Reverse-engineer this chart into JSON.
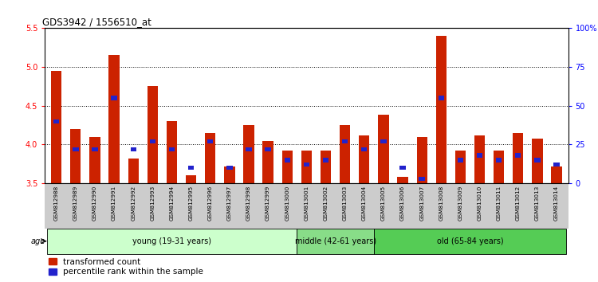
{
  "title": "GDS3942 / 1556510_at",
  "samples": [
    "GSM812988",
    "GSM812989",
    "GSM812990",
    "GSM812991",
    "GSM812992",
    "GSM812993",
    "GSM812994",
    "GSM812995",
    "GSM812996",
    "GSM812997",
    "GSM812998",
    "GSM812999",
    "GSM813000",
    "GSM813001",
    "GSM813002",
    "GSM813003",
    "GSM813004",
    "GSM813005",
    "GSM813006",
    "GSM813007",
    "GSM813008",
    "GSM813009",
    "GSM813010",
    "GSM813011",
    "GSM813012",
    "GSM813013",
    "GSM813014"
  ],
  "red_values": [
    4.95,
    4.2,
    4.1,
    5.15,
    3.82,
    4.75,
    4.3,
    3.6,
    4.15,
    3.72,
    4.25,
    4.05,
    3.92,
    3.92,
    3.92,
    4.25,
    4.12,
    4.38,
    3.58,
    4.1,
    5.4,
    3.92,
    4.12,
    3.92,
    4.15,
    4.08,
    3.72
  ],
  "blue_pct": [
    40,
    22,
    22,
    55,
    22,
    27,
    22,
    10,
    27,
    10,
    22,
    22,
    15,
    12,
    15,
    27,
    22,
    27,
    10,
    3,
    55,
    15,
    18,
    15,
    18,
    15,
    12
  ],
  "ylim": [
    3.5,
    5.5
  ],
  "y2lim": [
    0,
    100
  ],
  "yticks": [
    3.5,
    4.0,
    4.5,
    5.0,
    5.5
  ],
  "y2ticks": [
    0,
    25,
    50,
    75,
    100
  ],
  "y2ticklabels": [
    "0",
    "25",
    "50",
    "75",
    "100%"
  ],
  "groups": [
    {
      "label": "young (19-31 years)",
      "start": 0,
      "end": 13,
      "color": "#ccffcc"
    },
    {
      "label": "middle (42-61 years)",
      "start": 13,
      "end": 17,
      "color": "#88dd88"
    },
    {
      "label": "old (65-84 years)",
      "start": 17,
      "end": 27,
      "color": "#55cc55"
    }
  ],
  "bar_color_red": "#cc2200",
  "bar_color_blue": "#2222cc",
  "bar_width": 0.55,
  "legend_red": "transformed count",
  "legend_blue": "percentile rank within the sample",
  "gridlines": [
    4.0,
    4.5,
    5.0
  ],
  "label_bg_color": "#cccccc"
}
